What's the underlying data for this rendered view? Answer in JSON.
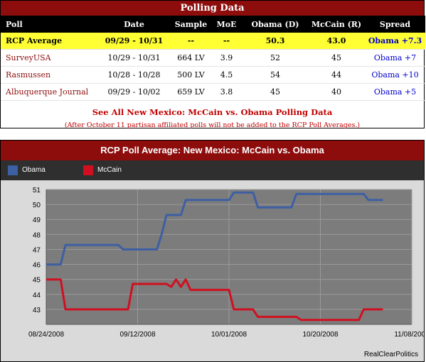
{
  "polling": {
    "title": "Polling Data",
    "headers": [
      "Poll",
      "Date",
      "Sample",
      "MoE",
      "Obama (D)",
      "McCain (R)",
      "Spread"
    ],
    "rcp": {
      "poll": "RCP Average",
      "date": "09/29 - 10/31",
      "sample": "--",
      "moe": "--",
      "obama": "50.3",
      "mccain": "43.0",
      "spread": "Obama +7.3"
    },
    "rows": [
      {
        "poll": "SurveyUSA",
        "date": "10/29 - 10/31",
        "sample": "664 LV",
        "moe": "3.9",
        "obama": "52",
        "mccain": "45",
        "spread": "Obama +7"
      },
      {
        "poll": "Rasmussen",
        "date": "10/28 - 10/28",
        "sample": "500 LV",
        "moe": "4.5",
        "obama": "54",
        "mccain": "44",
        "spread": "Obama +10"
      },
      {
        "poll": "Albuquerque Journal",
        "date": "09/29 - 10/02",
        "sample": "659 LV",
        "moe": "3.8",
        "obama": "45",
        "mccain": "40",
        "spread": "Obama +5"
      }
    ],
    "see_all_link": "See All New Mexico: McCain vs. Obama Polling Data",
    "note": "(After October 11 partisan affiliated polls will not be added to the RCP Poll Averages.)"
  },
  "chart": {
    "title": "RCP Poll Average: New Mexico: McCain vs. Obama",
    "credit": "RealClearPolitics",
    "colors": {
      "obama": "#3d5fa3",
      "mccain": "#d01020",
      "header": "#8d0d0d",
      "plot_bg": "#7c7c7c",
      "grid": "#9a9a9a"
    }
  },
  "chart_data": {
    "type": "line",
    "title": "RCP Poll Average: New Mexico: McCain vs. Obama",
    "xlabel": "",
    "ylabel": "",
    "x_ticks": [
      "08/24/2008",
      "09/12/2008",
      "10/01/2008",
      "10/20/2008",
      "11/08/2008"
    ],
    "y_ticks": [
      43,
      44,
      45,
      46,
      47,
      48,
      49,
      50,
      51
    ],
    "ylim": [
      42,
      51
    ],
    "xlim": [
      "2008-08-24",
      "2008-11-08"
    ],
    "grid": true,
    "legend_position": "top",
    "series": [
      {
        "name": "Obama",
        "color": "#3d5fa3",
        "points": [
          [
            "2008-08-24",
            46.0
          ],
          [
            "2008-08-27",
            46.0
          ],
          [
            "2008-08-28",
            47.3
          ],
          [
            "2008-09-08",
            47.3
          ],
          [
            "2008-09-09",
            47.0
          ],
          [
            "2008-09-16",
            47.0
          ],
          [
            "2008-09-17",
            48.0
          ],
          [
            "2008-09-18",
            49.3
          ],
          [
            "2008-09-19",
            49.3
          ],
          [
            "2008-09-21",
            49.3
          ],
          [
            "2008-09-22",
            50.3
          ],
          [
            "2008-10-01",
            50.3
          ],
          [
            "2008-10-02",
            50.8
          ],
          [
            "2008-10-06",
            50.8
          ],
          [
            "2008-10-07",
            49.8
          ],
          [
            "2008-10-14",
            49.8
          ],
          [
            "2008-10-15",
            50.7
          ],
          [
            "2008-10-29",
            50.7
          ],
          [
            "2008-10-30",
            50.3
          ],
          [
            "2008-11-02",
            50.3
          ]
        ]
      },
      {
        "name": "McCain",
        "color": "#d01020",
        "points": [
          [
            "2008-08-24",
            45.0
          ],
          [
            "2008-08-27",
            45.0
          ],
          [
            "2008-08-28",
            43.0
          ],
          [
            "2008-09-10",
            43.0
          ],
          [
            "2008-09-11",
            44.7
          ],
          [
            "2008-09-18",
            44.7
          ],
          [
            "2008-09-19",
            44.5
          ],
          [
            "2008-09-20",
            45.0
          ],
          [
            "2008-09-21",
            44.5
          ],
          [
            "2008-09-22",
            45.0
          ],
          [
            "2008-09-23",
            44.3
          ],
          [
            "2008-10-01",
            44.3
          ],
          [
            "2008-10-02",
            43.0
          ],
          [
            "2008-10-06",
            43.0
          ],
          [
            "2008-10-07",
            42.5
          ],
          [
            "2008-10-15",
            42.5
          ],
          [
            "2008-10-16",
            42.3
          ],
          [
            "2008-10-28",
            42.3
          ],
          [
            "2008-10-29",
            43.0
          ],
          [
            "2008-11-02",
            43.0
          ]
        ]
      }
    ]
  }
}
